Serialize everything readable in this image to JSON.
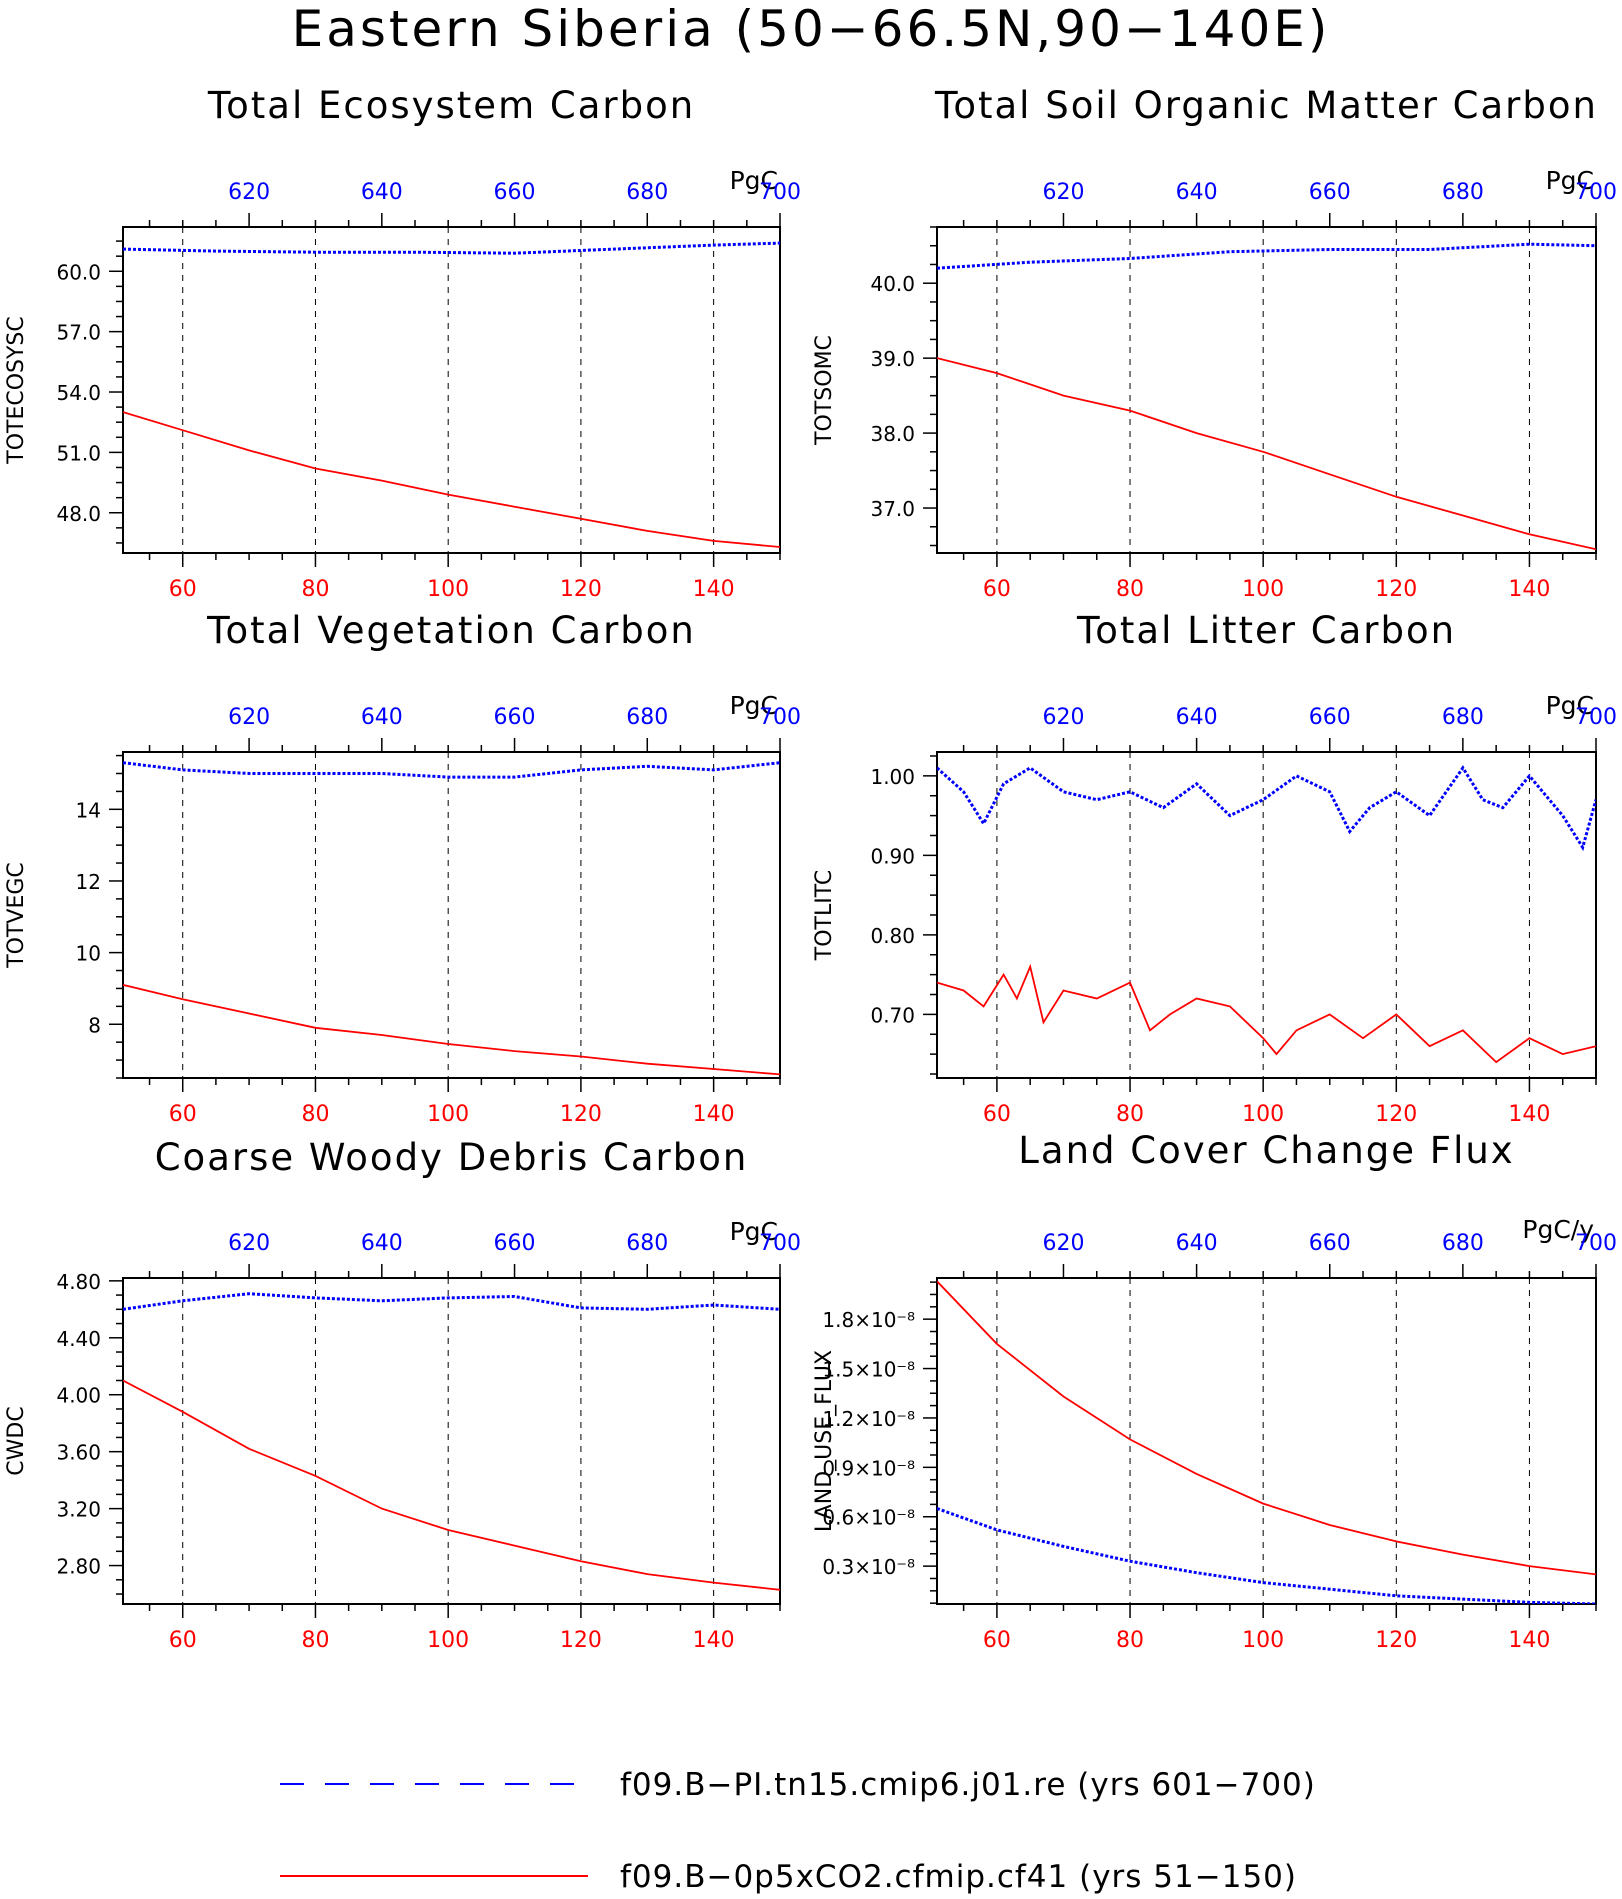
{
  "title": "Eastern Siberia (50−66.5N,90−140E)",
  "legend": [
    {
      "label": "f09.B−PI.tn15.cmip6.j01.re (yrs 601−700)",
      "color": "#0000ff",
      "style": "dashed"
    },
    {
      "label": "f09.B−0p5xCO2.cfmip.cf41 (yrs 51−150)",
      "color": "#ff0000",
      "style": "solid"
    }
  ],
  "chart_data": [
    {
      "type": "line",
      "title": "Total Ecosystem Carbon",
      "ylabel": "TOTECOSYSC",
      "units": "PgC",
      "x_bottom": {
        "range": [
          51,
          150
        ],
        "ticks": [
          "60",
          "80",
          "100",
          "120",
          "140"
        ]
      },
      "x_top": {
        "range": [
          601,
          700
        ],
        "ticks": [
          "620",
          "640",
          "660",
          "680",
          "700"
        ]
      },
      "ylim": [
        46.0,
        62.2
      ],
      "yticks": [
        "60.0",
        "57.0",
        "54.0",
        "51.0",
        "48.0"
      ],
      "grid": "vertical-dashed",
      "series": [
        {
          "label": "f09.B−PI.tn15.cmip6.j01.re (yrs 601−700)",
          "color": "#0000ff",
          "style": "dotted",
          "x": [
            601,
            615,
            630,
            645,
            660,
            675,
            690,
            700
          ],
          "y": [
            61.1,
            61.0,
            60.95,
            60.95,
            60.9,
            61.1,
            61.3,
            61.4
          ]
        },
        {
          "label": "f09.B−0p5xCO2.cfmip.cf41 (yrs 51−150)",
          "color": "#ff0000",
          "style": "solid",
          "x": [
            51,
            60,
            70,
            80,
            90,
            100,
            110,
            120,
            130,
            140,
            150
          ],
          "y": [
            53.0,
            52.1,
            51.1,
            50.2,
            49.6,
            48.9,
            48.3,
            47.7,
            47.1,
            46.6,
            46.3
          ]
        }
      ]
    },
    {
      "type": "line",
      "title": "Total Soil Organic Matter Carbon",
      "ylabel": "TOTSOMC",
      "units": "PgC",
      "x_bottom": {
        "range": [
          51,
          150
        ],
        "ticks": [
          "60",
          "80",
          "100",
          "120",
          "140"
        ]
      },
      "x_top": {
        "range": [
          601,
          700
        ],
        "ticks": [
          "620",
          "640",
          "660",
          "680",
          "700"
        ]
      },
      "ylim": [
        36.4,
        40.75
      ],
      "yticks": [
        "40.0",
        "39.0",
        "38.0",
        "37.0"
      ],
      "grid": "vertical-dashed",
      "series": [
        {
          "label": "f09.B−PI.tn15.cmip6.j01.re (yrs 601−700)",
          "color": "#0000ff",
          "style": "dotted",
          "x": [
            601,
            615,
            630,
            645,
            660,
            675,
            690,
            700
          ],
          "y": [
            40.2,
            40.28,
            40.33,
            40.42,
            40.45,
            40.45,
            40.52,
            40.5
          ]
        },
        {
          "label": "f09.B−0p5xCO2.cfmip.cf41 (yrs 51−150)",
          "color": "#ff0000",
          "style": "solid",
          "x": [
            51,
            60,
            70,
            80,
            90,
            100,
            110,
            120,
            130,
            140,
            150
          ],
          "y": [
            39.0,
            38.8,
            38.5,
            38.3,
            38.0,
            37.75,
            37.45,
            37.15,
            36.9,
            36.65,
            36.45
          ]
        }
      ]
    },
    {
      "type": "line",
      "title": "Total Vegetation Carbon",
      "ylabel": "TOTVEGC",
      "units": "PgC",
      "x_bottom": {
        "range": [
          51,
          150
        ],
        "ticks": [
          "60",
          "80",
          "100",
          "120",
          "140"
        ]
      },
      "x_top": {
        "range": [
          601,
          700
        ],
        "ticks": [
          "620",
          "640",
          "660",
          "680",
          "700"
        ]
      },
      "ylim": [
        6.5,
        15.6
      ],
      "yticks": [
        "14",
        "12",
        "10",
        "8"
      ],
      "grid": "vertical-dashed",
      "series": [
        {
          "label": "f09.B−PI.tn15.cmip6.j01.re (yrs 601−700)",
          "color": "#0000ff",
          "style": "dotted",
          "x": [
            601,
            610,
            620,
            630,
            640,
            650,
            660,
            670,
            680,
            690,
            700
          ],
          "y": [
            15.3,
            15.1,
            15.0,
            15.0,
            15.0,
            14.9,
            14.9,
            15.1,
            15.2,
            15.1,
            15.3
          ]
        },
        {
          "label": "f09.B−0p5xCO2.cfmip.cf41 (yrs 51−150)",
          "color": "#ff0000",
          "style": "solid",
          "x": [
            51,
            60,
            70,
            80,
            90,
            100,
            110,
            120,
            130,
            140,
            150
          ],
          "y": [
            9.1,
            8.7,
            8.3,
            7.9,
            7.7,
            7.45,
            7.25,
            7.1,
            6.9,
            6.75,
            6.6
          ]
        }
      ]
    },
    {
      "type": "line",
      "title": "Total Litter Carbon",
      "ylabel": "TOTLITC",
      "units": "PgC",
      "x_bottom": {
        "range": [
          51,
          150
        ],
        "ticks": [
          "60",
          "80",
          "100",
          "120",
          "140"
        ]
      },
      "x_top": {
        "range": [
          601,
          700
        ],
        "ticks": [
          "620",
          "640",
          "660",
          "680",
          "700"
        ]
      },
      "ylim": [
        0.62,
        1.03
      ],
      "yticks": [
        "1.00",
        "0.90",
        "0.80",
        "0.70"
      ],
      "grid": "vertical-dashed",
      "series": [
        {
          "label": "f09.B−PI.tn15.cmip6.j01.re (yrs 601−700)",
          "color": "#0000ff",
          "style": "dotted",
          "x": [
            601,
            605,
            608,
            611,
            615,
            620,
            625,
            630,
            635,
            640,
            645,
            650,
            655,
            660,
            663,
            666,
            670,
            675,
            680,
            683,
            686,
            690,
            695,
            698,
            700
          ],
          "y": [
            1.01,
            0.98,
            0.94,
            0.99,
            1.01,
            0.98,
            0.97,
            0.98,
            0.96,
            0.99,
            0.95,
            0.97,
            1.0,
            0.98,
            0.93,
            0.96,
            0.98,
            0.95,
            1.01,
            0.97,
            0.96,
            1.0,
            0.95,
            0.91,
            0.97
          ]
        },
        {
          "label": "f09.B−0p5xCO2.cfmip.cf41 (yrs 51−150)",
          "color": "#ff0000",
          "style": "solid",
          "x": [
            51,
            55,
            58,
            61,
            63,
            65,
            67,
            70,
            75,
            80,
            83,
            86,
            90,
            95,
            100,
            102,
            105,
            110,
            115,
            120,
            125,
            130,
            135,
            140,
            145,
            150
          ],
          "y": [
            0.74,
            0.73,
            0.71,
            0.75,
            0.72,
            0.76,
            0.69,
            0.73,
            0.72,
            0.74,
            0.68,
            0.7,
            0.72,
            0.71,
            0.67,
            0.65,
            0.68,
            0.7,
            0.67,
            0.7,
            0.66,
            0.68,
            0.64,
            0.67,
            0.65,
            0.66
          ]
        }
      ]
    },
    {
      "type": "line",
      "title": "Coarse Woody Debris Carbon",
      "ylabel": "CWDC",
      "units": "PgC",
      "x_bottom": {
        "range": [
          51,
          150
        ],
        "ticks": [
          "60",
          "80",
          "100",
          "120",
          "140"
        ]
      },
      "x_top": {
        "range": [
          601,
          700
        ],
        "ticks": [
          "620",
          "640",
          "660",
          "680",
          "700"
        ]
      },
      "ylim": [
        2.53,
        4.82
      ],
      "yticks": [
        "4.80",
        "4.40",
        "4.00",
        "3.60",
        "3.20",
        "2.80"
      ],
      "grid": "vertical-dashed",
      "series": [
        {
          "label": "f09.B−PI.tn15.cmip6.j01.re (yrs 601−700)",
          "color": "#0000ff",
          "style": "dotted",
          "x": [
            601,
            610,
            620,
            630,
            640,
            650,
            660,
            670,
            680,
            690,
            700
          ],
          "y": [
            4.6,
            4.66,
            4.71,
            4.68,
            4.66,
            4.68,
            4.69,
            4.61,
            4.6,
            4.63,
            4.6
          ]
        },
        {
          "label": "f09.B−0p5xCO2.cfmip.cf41 (yrs 51−150)",
          "color": "#ff0000",
          "style": "solid",
          "x": [
            51,
            60,
            70,
            80,
            90,
            100,
            110,
            120,
            130,
            140,
            150
          ],
          "y": [
            4.1,
            3.88,
            3.62,
            3.43,
            3.2,
            3.05,
            2.94,
            2.83,
            2.74,
            2.68,
            2.63
          ]
        }
      ]
    },
    {
      "type": "line",
      "title": "Land Cover Change Flux",
      "ylabel": "LAND_USE_FLUX",
      "units": "PgC/y",
      "x_bottom": {
        "range": [
          51,
          150
        ],
        "ticks": [
          "60",
          "80",
          "100",
          "120",
          "140"
        ]
      },
      "x_top": {
        "range": [
          601,
          700
        ],
        "ticks": [
          "620",
          "640",
          "660",
          "680",
          "700"
        ]
      },
      "ylim": [
        0.07,
        2.05
      ],
      "y_multiplier": "×10⁻⁸",
      "yticks": [
        {
          "mant": "1.8",
          "v": 1.8
        },
        {
          "mant": "1.5",
          "v": 1.5
        },
        {
          "mant": "1.2",
          "v": 1.2
        },
        {
          "mant": "0.9",
          "v": 0.9
        },
        {
          "mant": "0.6",
          "v": 0.6
        },
        {
          "mant": "0.3",
          "v": 0.3
        }
      ],
      "grid": "vertical-dashed",
      "series": [
        {
          "label": "f09.B−PI.tn15.cmip6.j01.re (yrs 601−700)",
          "color": "#0000ff",
          "style": "dotted",
          "x": [
            601,
            610,
            620,
            630,
            640,
            650,
            660,
            670,
            680,
            690,
            700
          ],
          "y": [
            0.65,
            0.52,
            0.42,
            0.33,
            0.26,
            0.2,
            0.16,
            0.12,
            0.1,
            0.08,
            0.07
          ]
        },
        {
          "label": "f09.B−0p5xCO2.cfmip.cf41 (yrs 51−150)",
          "color": "#ff0000",
          "style": "solid",
          "x": [
            51,
            60,
            70,
            80,
            90,
            100,
            110,
            120,
            130,
            140,
            150
          ],
          "y": [
            2.03,
            1.65,
            1.33,
            1.07,
            0.86,
            0.68,
            0.55,
            0.45,
            0.37,
            0.3,
            0.25
          ]
        }
      ]
    }
  ]
}
